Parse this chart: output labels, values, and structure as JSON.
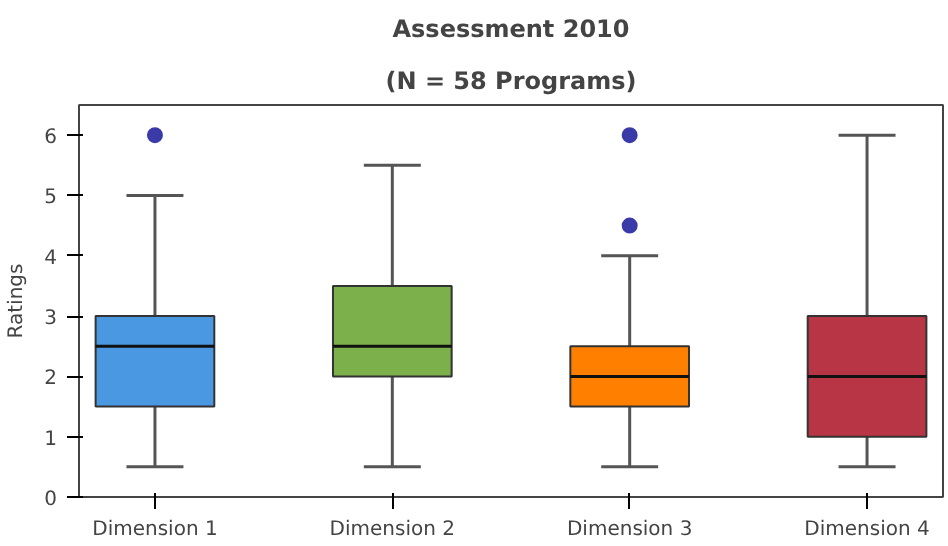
{
  "chart_data": {
    "type": "box",
    "title": "Assessment 2010",
    "subtitle": "(N = 58 Programs)",
    "ylabel": "Ratings",
    "categories": [
      "Dimension 1",
      "Dimension 2",
      "Dimension 3",
      "Dimension 4"
    ],
    "colors": [
      "#4a97e2",
      "#7cb04a",
      "#ff8000",
      "#b83545"
    ],
    "boxes": [
      {
        "low": 0.5,
        "q1": 1.5,
        "median": 2.5,
        "q3": 3,
        "high": 5,
        "outliers": [
          6
        ]
      },
      {
        "low": 0.5,
        "q1": 2,
        "median": 2.5,
        "q3": 3.5,
        "high": 5.5
      },
      {
        "low": 0.5,
        "q1": 1.5,
        "median": 2,
        "q3": 2.5,
        "high": 4,
        "outliers": [
          4.5,
          6
        ]
      },
      {
        "low": 0.5,
        "q1": 1,
        "median": 2,
        "q3": 3,
        "high": 6
      }
    ],
    "ylim": [
      0,
      6.5
    ],
    "yticks": [
      0,
      1,
      2,
      3,
      4,
      5,
      6
    ],
    "grid": false
  }
}
